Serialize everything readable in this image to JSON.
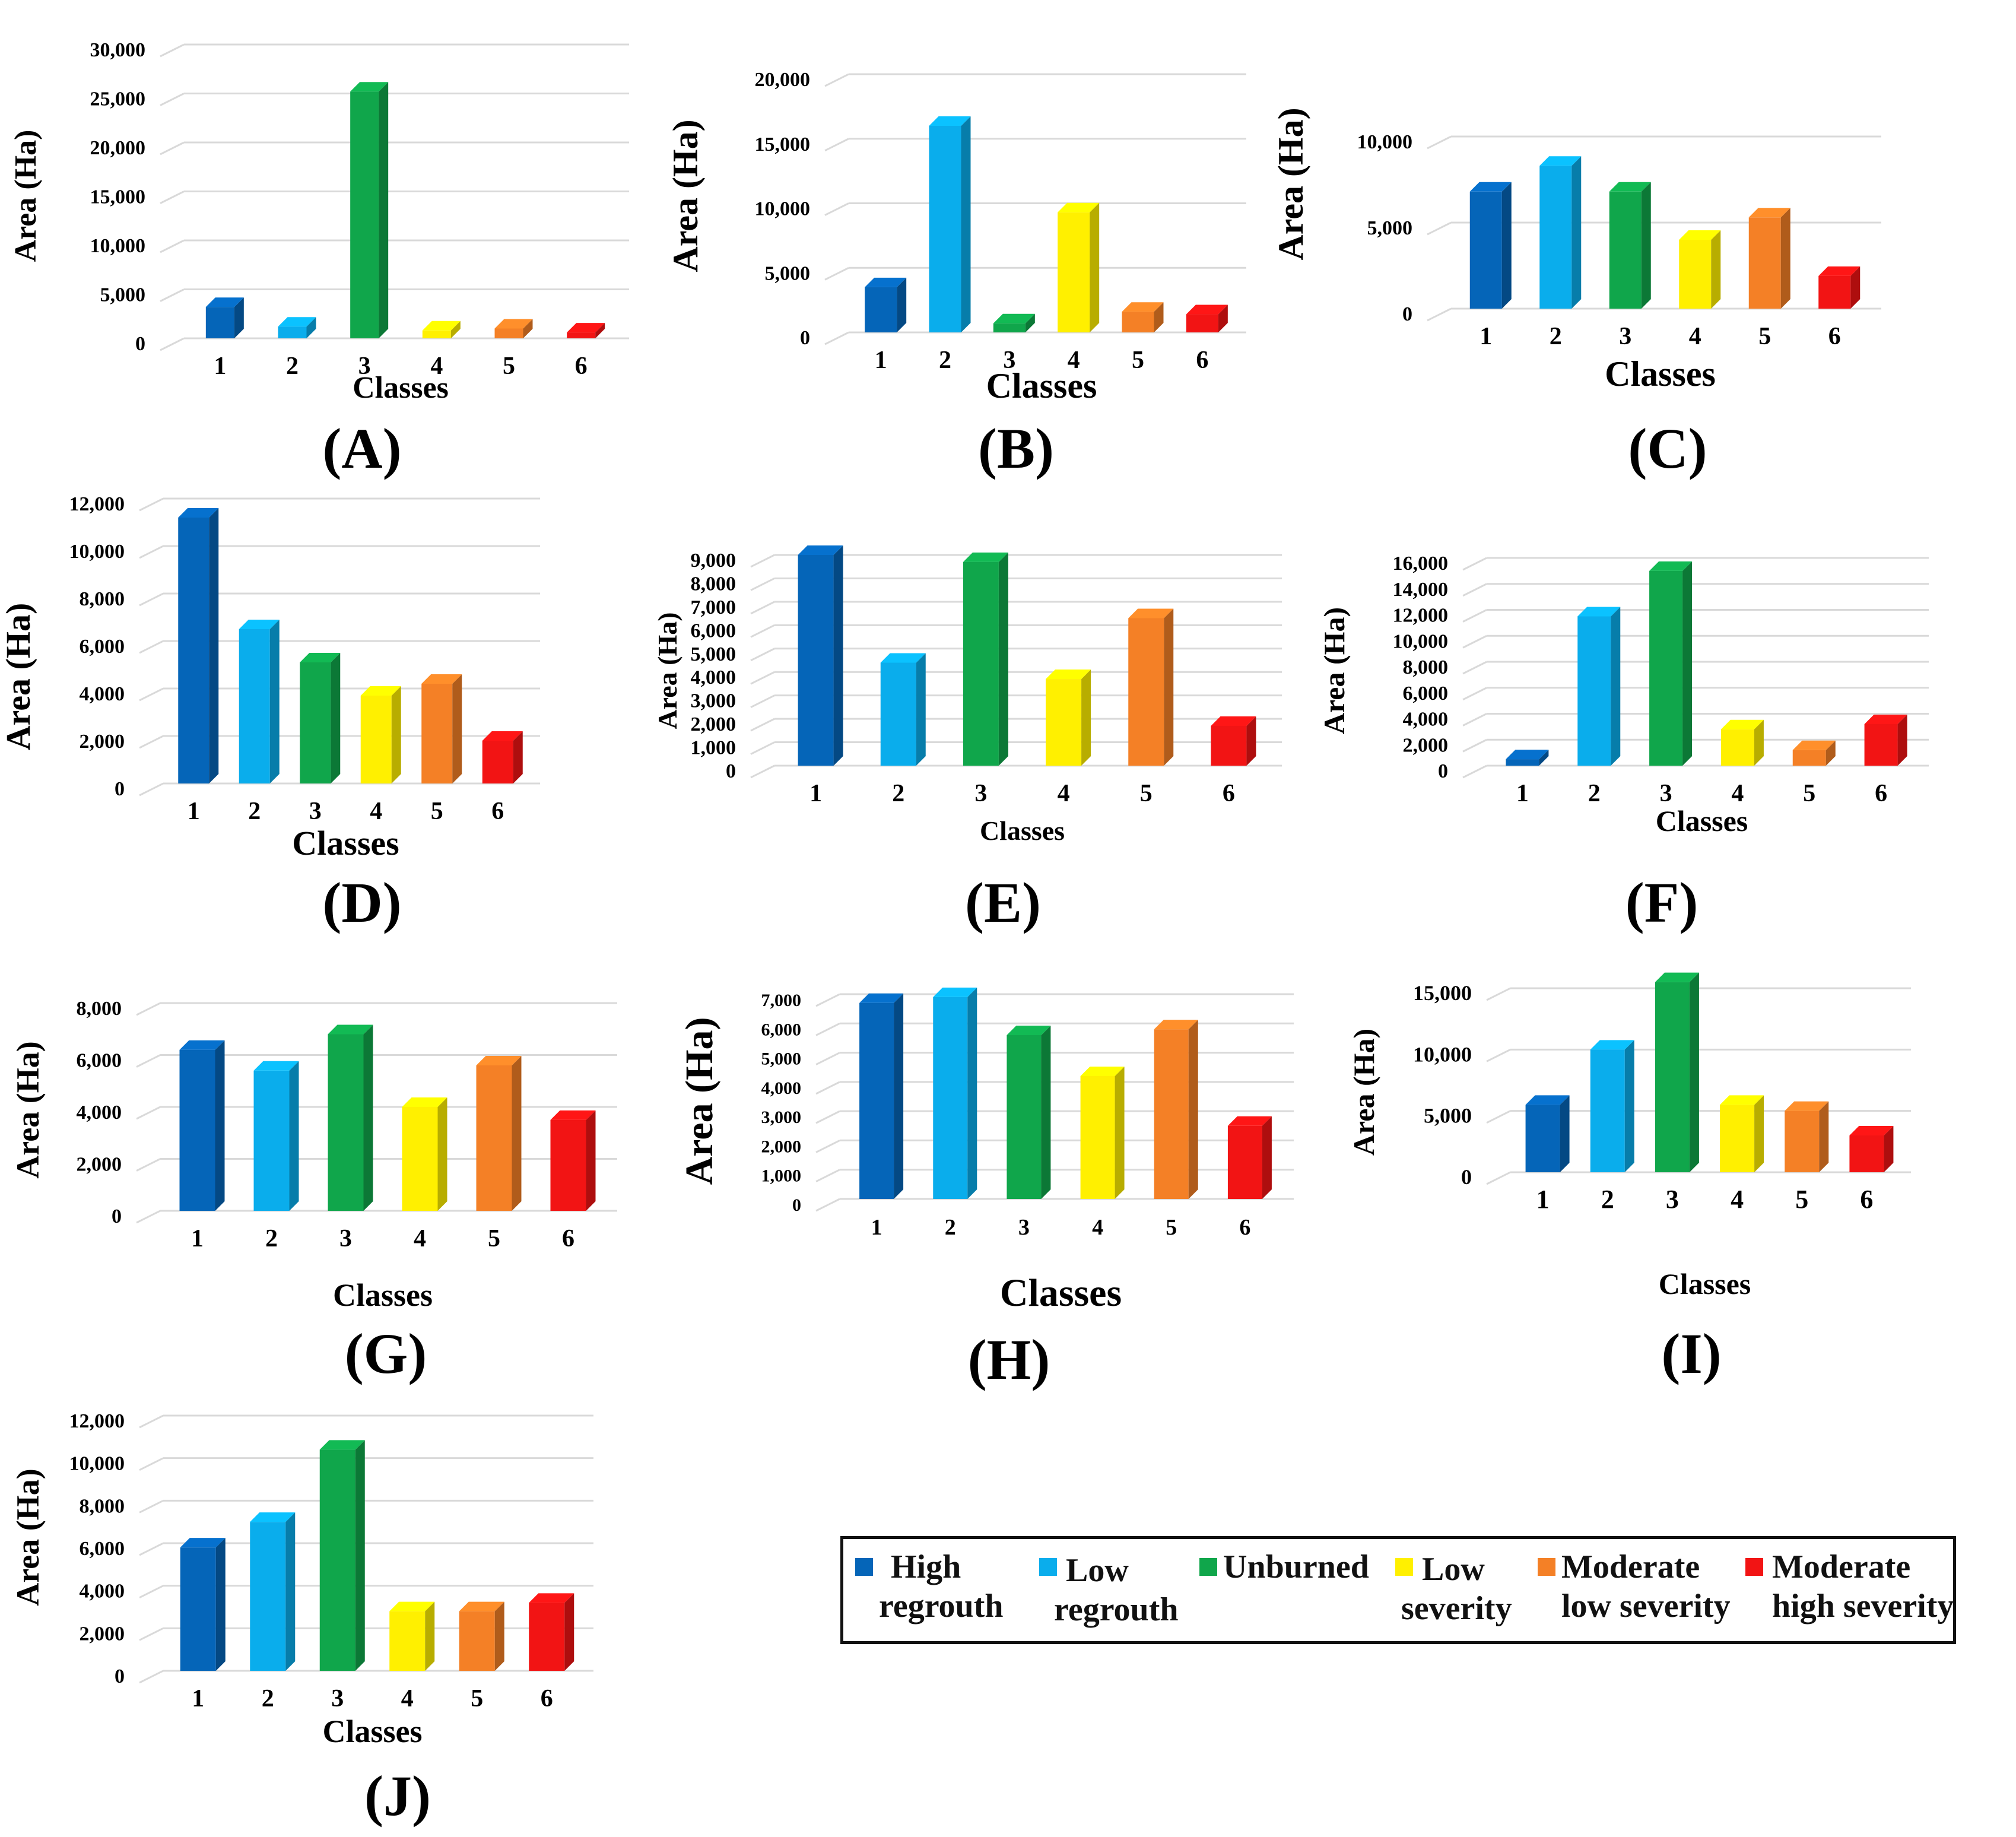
{
  "colors": {
    "class_colors": [
      "#0565B8",
      "#0AADEC",
      "#10A64B",
      "#FFF000",
      "#F48026",
      "#F21414"
    ],
    "axis_text": "#000000",
    "grid": "#D9D9D9"
  },
  "chart_data": [
    {
      "panel": "(A)",
      "type": "bar",
      "categories": [
        "1",
        "2",
        "3",
        "4",
        "5",
        "6"
      ],
      "values": [
        3200,
        1200,
        25200,
        800,
        1000,
        600
      ],
      "ylabel": "Area (Ha)",
      "xlabel": "Classes",
      "ylim": [
        0,
        30000
      ],
      "yticks": [
        "0",
        "5,000",
        "10,000",
        "15,000",
        "20,000",
        "25,000",
        "30,000"
      ]
    },
    {
      "panel": "(B)",
      "type": "bar",
      "categories": [
        "1",
        "2",
        "3",
        "4",
        "5",
        "6"
      ],
      "values": [
        3500,
        16000,
        700,
        9300,
        1600,
        1400
      ],
      "ylabel": "Area (Ha)",
      "xlabel": "Classes",
      "ylim": [
        0,
        20000
      ],
      "yticks": [
        "0",
        "5,000",
        "10,000",
        "15,000",
        "20,000"
      ]
    },
    {
      "panel": "(C)",
      "type": "bar",
      "categories": [
        "1",
        "2",
        "3",
        "4",
        "5",
        "6"
      ],
      "values": [
        6800,
        8300,
        6800,
        4000,
        5300,
        1900
      ],
      "ylabel": "Area (Ha)",
      "xlabel": "Classes",
      "ylim": [
        0,
        10000
      ],
      "yticks": [
        "0",
        "5,000",
        "10,000"
      ]
    },
    {
      "panel": "(D)",
      "type": "bar",
      "categories": [
        "1",
        "2",
        "3",
        "4",
        "5",
        "6"
      ],
      "values": [
        11200,
        6500,
        5100,
        3700,
        4200,
        1800
      ],
      "ylabel": "Area (Ha)",
      "xlabel": "Classes",
      "ylim": [
        0,
        12000
      ],
      "yticks": [
        "0",
        "2,000",
        "4,000",
        "6,000",
        "8,000",
        "10,000",
        "12,000"
      ]
    },
    {
      "panel": "(E)",
      "type": "bar",
      "categories": [
        "1",
        "2",
        "3",
        "4",
        "5",
        "6"
      ],
      "values": [
        9000,
        4400,
        8700,
        3700,
        6300,
        1700
      ],
      "ylabel": "Area (Ha)",
      "xlabel": "Classes",
      "ylim": [
        0,
        9000
      ],
      "yticks": [
        "0",
        "1,000",
        "2,000",
        "3,000",
        "4,000",
        "5,000",
        "6,000",
        "7,000",
        "8,000",
        "9,000"
      ]
    },
    {
      "panel": "(F)",
      "type": "bar",
      "categories": [
        "1",
        "2",
        "3",
        "4",
        "5",
        "6"
      ],
      "values": [
        500,
        11500,
        15000,
        2800,
        1200,
        3200
      ],
      "ylabel": "Area (Ha)",
      "xlabel": "Classes",
      "ylim": [
        0,
        16000
      ],
      "yticks": [
        "0",
        "2,000",
        "4,000",
        "6,000",
        "8,000",
        "10,000",
        "12,000",
        "14,000",
        "16,000"
      ]
    },
    {
      "panel": "(G)",
      "type": "bar",
      "categories": [
        "1",
        "2",
        "3",
        "4",
        "5",
        "6"
      ],
      "values": [
        6200,
        5400,
        6800,
        4000,
        5600,
        3500
      ],
      "ylabel": "Area (Ha)",
      "xlabel": "Classes",
      "ylim": [
        0,
        8000
      ],
      "yticks": [
        "0",
        "2,000",
        "4,000",
        "6,000",
        "8,000"
      ]
    },
    {
      "panel": "(H)",
      "type": "bar",
      "categories": [
        "1",
        "2",
        "3",
        "4",
        "5",
        "6"
      ],
      "values": [
        6700,
        6900,
        5600,
        4200,
        5800,
        2500
      ],
      "ylabel": "Area (Ha)",
      "xlabel": "Classes",
      "ylim": [
        0,
        7000
      ],
      "yticks": [
        "0",
        "1,000",
        "2,000",
        "3,000",
        "4,000",
        "5,000",
        "6,000",
        "7,000"
      ]
    },
    {
      "panel": "(I)",
      "type": "bar",
      "categories": [
        "1",
        "2",
        "3",
        "4",
        "5",
        "6"
      ],
      "values": [
        5500,
        10000,
        15500,
        5500,
        5000,
        3000
      ],
      "ylabel": "Area (Ha)",
      "xlabel": "Classes",
      "ylim": [
        0,
        15000
      ],
      "yticks": [
        "0",
        "5,000",
        "10,000",
        "15,000"
      ]
    },
    {
      "panel": "(J)",
      "type": "bar",
      "categories": [
        "1",
        "2",
        "3",
        "4",
        "5",
        "6"
      ],
      "values": [
        5800,
        7000,
        10400,
        2800,
        2800,
        3200
      ],
      "ylabel": "Area (Ha)",
      "xlabel": "Classes",
      "ylim": [
        0,
        12000
      ],
      "yticks": [
        "0",
        "2,000",
        "4,000",
        "6,000",
        "8,000",
        "10,000",
        "12,000"
      ]
    }
  ],
  "legend": {
    "items": [
      {
        "line1": "High",
        "line2": "regrouth"
      },
      {
        "line1": "Low",
        "line2": "regrouth"
      },
      {
        "line1": "Unburned",
        "line2": ""
      },
      {
        "line1": "Low",
        "line2": "severity"
      },
      {
        "line1": "Moderate",
        "line2": "low severity"
      },
      {
        "line1": "Moderate",
        "line2": "high severity"
      }
    ]
  }
}
